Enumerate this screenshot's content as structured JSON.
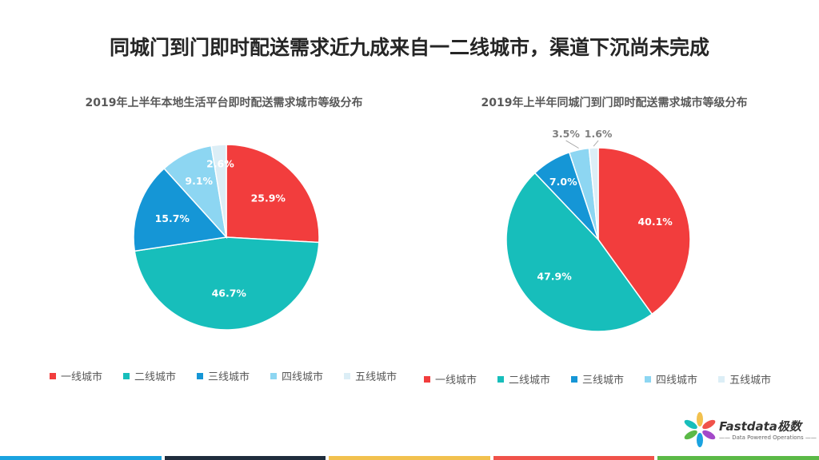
{
  "page": {
    "title": "同城门到门即时配送需求近九成来自一二线城市，渠道下沉尚未完成"
  },
  "chart_data": [
    {
      "type": "pie",
      "title": "2019年上半年本地生活平台即时配送需求城市等级分布",
      "categories": [
        "一线城市",
        "二线城市",
        "三线城市",
        "四线城市",
        "五线城市"
      ],
      "values": [
        25.9,
        46.7,
        15.7,
        9.1,
        2.6
      ],
      "labels": [
        "25.9%",
        "46.7%",
        "15.7%",
        "9.1%",
        "2.6%"
      ],
      "legend_position": "bottom"
    },
    {
      "type": "pie",
      "title": "2019年上半年同城门到门即时配送需求城市等级分布",
      "categories": [
        "一线城市",
        "二线城市",
        "三线城市",
        "四线城市",
        "五线城市"
      ],
      "values": [
        40.1,
        47.9,
        7.0,
        3.5,
        1.6
      ],
      "labels": [
        "40.1%",
        "47.9%",
        "7.0%",
        "3.5%",
        "1.6%"
      ],
      "legend_position": "bottom"
    }
  ],
  "colors": [
    "#f23d3d",
    "#17bebb",
    "#1596d6",
    "#8dd6f2",
    "#dceef6"
  ],
  "logo": {
    "name": "Fastdata极数",
    "tagline": "—— Data Powered Operations ——"
  },
  "footer_colors": [
    "#1aa3e0",
    "#1f2d3d",
    "#f2c14e",
    "#f0524a",
    "#5bb947"
  ]
}
